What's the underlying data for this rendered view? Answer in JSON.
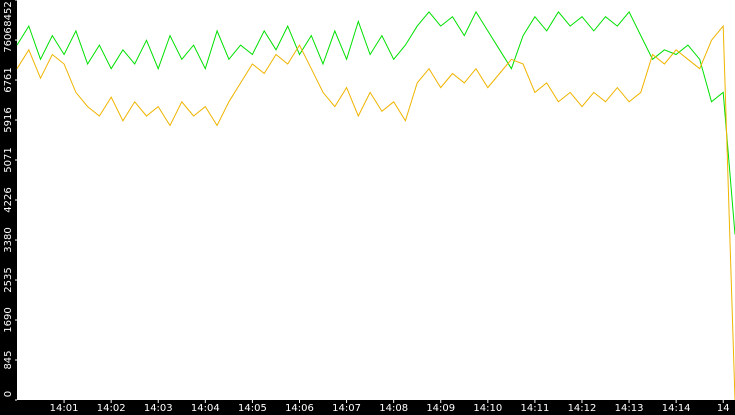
{
  "chart_data": {
    "type": "line",
    "x": [
      0,
      0.25,
      0.5,
      0.75,
      1,
      1.25,
      1.5,
      1.75,
      2,
      2.25,
      2.5,
      2.75,
      3,
      3.25,
      3.5,
      3.75,
      4,
      4.25,
      4.5,
      4.75,
      5,
      5.25,
      5.5,
      5.75,
      6,
      6.25,
      6.5,
      6.75,
      7,
      7.25,
      7.5,
      7.75,
      8,
      8.25,
      8.5,
      8.75,
      9,
      9.25,
      9.5,
      9.75,
      10,
      10.25,
      10.5,
      10.75,
      11,
      11.25,
      11.5,
      11.75,
      12,
      12.25,
      12.5,
      12.75,
      13,
      13.25,
      13.5,
      13.75,
      14,
      14.25,
      14.5,
      14.75,
      15,
      15.25
    ],
    "series": [
      {
        "color": "#00e000",
        "values": [
          7500,
          7900,
          7200,
          7700,
          7300,
          7800,
          7100,
          7500,
          7000,
          7400,
          7100,
          7600,
          7000,
          7700,
          7200,
          7500,
          7000,
          7800,
          7200,
          7500,
          7300,
          7800,
          7400,
          7900,
          7300,
          7700,
          7100,
          7800,
          7200,
          8000,
          7300,
          7700,
          7200,
          7500,
          7900,
          8200,
          7900,
          8100,
          7700,
          8200,
          7800,
          7400,
          7000,
          7700,
          8100,
          7800,
          8200,
          7900,
          8100,
          7800,
          8100,
          7900,
          8200,
          7700,
          7200,
          7400,
          7300,
          7500,
          7200,
          6300,
          6500,
          3500
        ]
      },
      {
        "color": "#f0b400",
        "values": [
          7000,
          7400,
          6800,
          7300,
          7100,
          6500,
          6200,
          6000,
          6400,
          5900,
          6300,
          6000,
          6200,
          5800,
          6300,
          6000,
          6200,
          5800,
          6300,
          6700,
          7100,
          6900,
          7300,
          7100,
          7500,
          7000,
          6500,
          6200,
          6600,
          6000,
          6500,
          6100,
          6300,
          5900,
          6700,
          7000,
          6600,
          6900,
          6700,
          7000,
          6600,
          6900,
          7200,
          7100,
          6500,
          6700,
          6300,
          6500,
          6200,
          6500,
          6300,
          6600,
          6300,
          6500,
          7300,
          7100,
          7400,
          7200,
          7000,
          7600,
          7900,
          0
        ]
      }
    ],
    "xlim": [
      0,
      15.25
    ],
    "xticks": [
      {
        "value": 1,
        "label": "14:01"
      },
      {
        "value": 2,
        "label": "14:02"
      },
      {
        "value": 3,
        "label": "14:03"
      },
      {
        "value": 4,
        "label": "14:04"
      },
      {
        "value": 5,
        "label": "14:05"
      },
      {
        "value": 6,
        "label": "14:06"
      },
      {
        "value": 7,
        "label": "14:07"
      },
      {
        "value": 8,
        "label": "14:08"
      },
      {
        "value": 9,
        "label": "14:09"
      },
      {
        "value": 10,
        "label": "14:10"
      },
      {
        "value": 11,
        "label": "14:11"
      },
      {
        "value": 12,
        "label": "14:12"
      },
      {
        "value": 13,
        "label": "14:13"
      },
      {
        "value": 14,
        "label": "14:14"
      },
      {
        "value": 15,
        "label": "14"
      }
    ],
    "ylim": [
      0,
      8452
    ],
    "yticks": [
      0,
      845,
      1690,
      2535,
      3380,
      4226,
      5071,
      5916,
      6761,
      7606,
      8452
    ]
  }
}
